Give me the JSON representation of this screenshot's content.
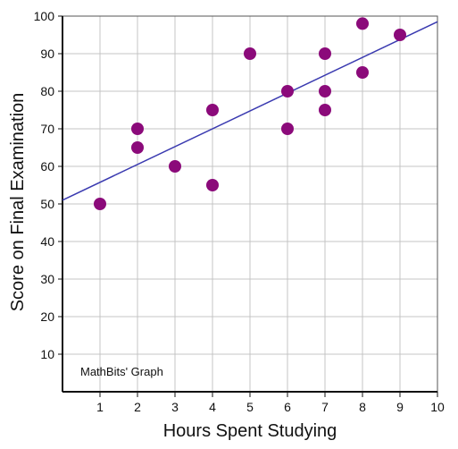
{
  "chart_data": {
    "type": "scatter",
    "xlabel": "Hours Spent Studying",
    "ylabel": "Score on Final Examination",
    "xlim": [
      0,
      10
    ],
    "ylim": [
      0,
      100
    ],
    "xticks": [
      1,
      2,
      3,
      4,
      5,
      6,
      7,
      8,
      9,
      10
    ],
    "yticks": [
      10,
      20,
      30,
      40,
      50,
      60,
      70,
      80,
      90,
      100
    ],
    "grid": true,
    "series": [
      {
        "points": [
          {
            "x": 1,
            "y": 50
          },
          {
            "x": 2,
            "y": 70
          },
          {
            "x": 2,
            "y": 65
          },
          {
            "x": 3,
            "y": 60
          },
          {
            "x": 4,
            "y": 75
          },
          {
            "x": 4,
            "y": 55
          },
          {
            "x": 5,
            "y": 90
          },
          {
            "x": 6,
            "y": 80
          },
          {
            "x": 6,
            "y": 70
          },
          {
            "x": 7,
            "y": 90
          },
          {
            "x": 7,
            "y": 80
          },
          {
            "x": 7,
            "y": 75
          },
          {
            "x": 8,
            "y": 98
          },
          {
            "x": 8,
            "y": 85
          },
          {
            "x": 9,
            "y": 95
          }
        ],
        "color": "#8b0a7a"
      }
    ],
    "trendline": {
      "x": [
        0,
        10
      ],
      "y": [
        51,
        98.5
      ],
      "color": "#3a3ab0"
    },
    "annotation": "MathBits' Graph"
  }
}
